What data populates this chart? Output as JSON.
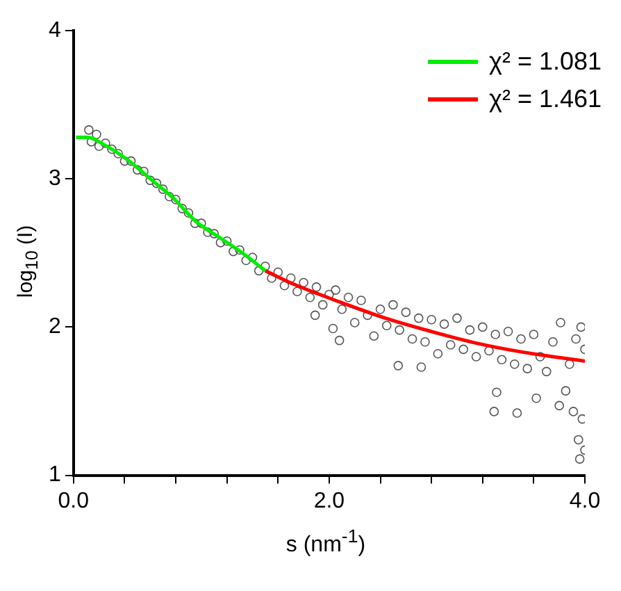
{
  "chart_data": {
    "type": "scatter",
    "xlabel": "s (nm$^{-1}$)",
    "ylabel": "log$_{10}$ (I)",
    "xlim": [
      0,
      4
    ],
    "xticks": [
      {
        "value": 0,
        "label": "0.0"
      },
      {
        "value": 0.4,
        "label": null
      },
      {
        "value": 0.8,
        "label": null
      },
      {
        "value": 1.2,
        "label": null
      },
      {
        "value": 1.6,
        "label": null
      },
      {
        "value": 2,
        "label": "2.0"
      },
      {
        "value": 2.4,
        "label": null
      },
      {
        "value": 2.8,
        "label": null
      },
      {
        "value": 3.2,
        "label": null
      },
      {
        "value": 3.6,
        "label": null
      },
      {
        "value": 4,
        "label": "4.0"
      }
    ],
    "ylim": [
      1,
      4
    ],
    "yticks": [
      1,
      2,
      3,
      4
    ],
    "legend": "top right",
    "series": [
      {
        "type": "scatter",
        "color": "#555555",
        "marker": "circle",
        "x": [
          0.12,
          0.14,
          0.18,
          0.2,
          0.25,
          0.3,
          0.35,
          0.4,
          0.45,
          0.5,
          0.55,
          0.6,
          0.65,
          0.7,
          0.75,
          0.8,
          0.85,
          0.9,
          0.95,
          1.0,
          1.05,
          1.1,
          1.15,
          1.2,
          1.25,
          1.3,
          1.35,
          1.4,
          1.45,
          1.5,
          1.55,
          1.6,
          1.65,
          1.7,
          1.75,
          1.8,
          1.85,
          1.89,
          1.9,
          1.95,
          2.0,
          2.03,
          2.05,
          2.08,
          2.1,
          2.15,
          2.2,
          2.25,
          2.3,
          2.35,
          2.4,
          2.45,
          2.5,
          2.54,
          2.55,
          2.6,
          2.65,
          2.7,
          2.72,
          2.75,
          2.8,
          2.85,
          2.9,
          2.95,
          3.0,
          3.05,
          3.1,
          3.15,
          3.2,
          3.25,
          3.29,
          3.3,
          3.31,
          3.35,
          3.4,
          3.45,
          3.47,
          3.5,
          3.55,
          3.6,
          3.62,
          3.65,
          3.7,
          3.75,
          3.8,
          3.81,
          3.85,
          3.88,
          3.91,
          3.93,
          3.95,
          3.96,
          3.97,
          3.98,
          4.0,
          4.0
        ],
        "values": [
          3.33,
          3.25,
          3.3,
          3.22,
          3.24,
          3.2,
          3.17,
          3.12,
          3.12,
          3.06,
          3.05,
          2.99,
          2.97,
          2.93,
          2.88,
          2.86,
          2.8,
          2.77,
          2.7,
          2.7,
          2.64,
          2.63,
          2.57,
          2.58,
          2.51,
          2.52,
          2.45,
          2.47,
          2.38,
          2.41,
          2.33,
          2.37,
          2.28,
          2.33,
          2.24,
          2.3,
          2.2,
          2.08,
          2.27,
          2.15,
          2.22,
          1.99,
          2.25,
          1.91,
          2.12,
          2.2,
          2.03,
          2.18,
          2.08,
          1.94,
          2.12,
          2.01,
          2.15,
          1.74,
          1.98,
          2.1,
          1.92,
          2.06,
          1.73,
          1.9,
          2.05,
          1.82,
          2.02,
          1.88,
          2.06,
          1.85,
          1.98,
          1.8,
          2.0,
          1.84,
          1.43,
          1.95,
          1.56,
          1.78,
          1.97,
          1.75,
          1.42,
          1.92,
          1.72,
          1.95,
          1.52,
          1.8,
          1.7,
          1.9,
          1.47,
          2.03,
          1.57,
          1.75,
          1.43,
          1.92,
          1.24,
          1.11,
          2.0,
          1.38,
          1.17,
          1.85
        ]
      },
      {
        "type": "line",
        "name": "χ² = 1.081",
        "color": "#00ee00",
        "x": [
          0.02,
          0.11,
          0.24,
          0.42,
          0.6,
          0.78,
          0.96,
          1.15,
          1.32,
          1.5
        ],
        "values": [
          3.28,
          3.28,
          3.23,
          3.13,
          3.0,
          2.87,
          2.71,
          2.6,
          2.5,
          2.38
        ]
      },
      {
        "type": "line",
        "name": "χ² = 1.461",
        "color": "#ff0000",
        "x": [
          1.5,
          1.72,
          2.08,
          2.44,
          2.8,
          3.16,
          3.52,
          4.0
        ],
        "values": [
          2.38,
          2.29,
          2.17,
          2.06,
          1.97,
          1.89,
          1.83,
          1.77
        ]
      }
    ]
  }
}
